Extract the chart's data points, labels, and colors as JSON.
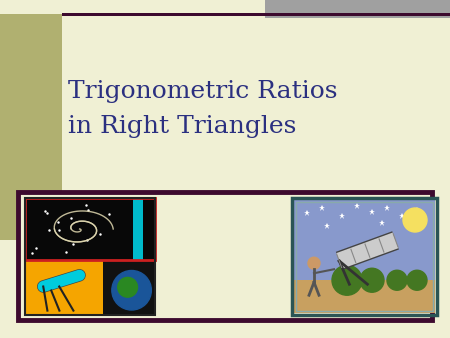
{
  "slide_bg": "#f0f0d4",
  "left_rect_color": "#b0b070",
  "top_right_rect_color": "#a0a0a0",
  "border_color": "#3d0a2e",
  "title_line1": "Trigonometric Ratios",
  "title_line2": "in Right Triangles",
  "title_color": "#2b3080",
  "title_fontsize": 18,
  "figsize": [
    4.5,
    3.38
  ],
  "dpi": 100
}
